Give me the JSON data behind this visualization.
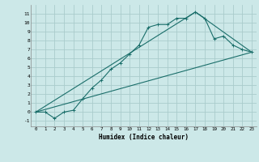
{
  "xlabel": "Humidex (Indice chaleur)",
  "background_color": "#cce8e8",
  "grid_color": "#aacccc",
  "line_color": "#1a6e6a",
  "xlim": [
    -0.5,
    23.5
  ],
  "ylim": [
    -1.6,
    12.0
  ],
  "xticks": [
    0,
    1,
    2,
    3,
    4,
    5,
    6,
    7,
    8,
    9,
    10,
    11,
    12,
    13,
    14,
    15,
    16,
    17,
    18,
    19,
    20,
    21,
    22,
    23
  ],
  "yticks": [
    -1,
    0,
    1,
    2,
    3,
    4,
    5,
    6,
    7,
    8,
    9,
    10,
    11
  ],
  "line1_x": [
    0,
    1,
    2,
    3,
    4,
    5,
    6,
    7,
    8,
    9,
    10,
    11,
    12,
    13,
    14,
    15,
    16,
    17,
    18,
    19,
    20,
    21,
    22,
    23
  ],
  "line1_y": [
    0,
    0,
    -0.7,
    0,
    0.2,
    1.5,
    2.7,
    3.6,
    4.8,
    5.5,
    6.5,
    7.5,
    9.5,
    9.8,
    9.8,
    10.5,
    10.5,
    11.2,
    10.5,
    8.2,
    8.5,
    7.5,
    7.0,
    6.7
  ],
  "line2_x": [
    0,
    23
  ],
  "line2_y": [
    0,
    6.7
  ],
  "line3_x": [
    0,
    17,
    23
  ],
  "line3_y": [
    0,
    11.2,
    6.7
  ]
}
